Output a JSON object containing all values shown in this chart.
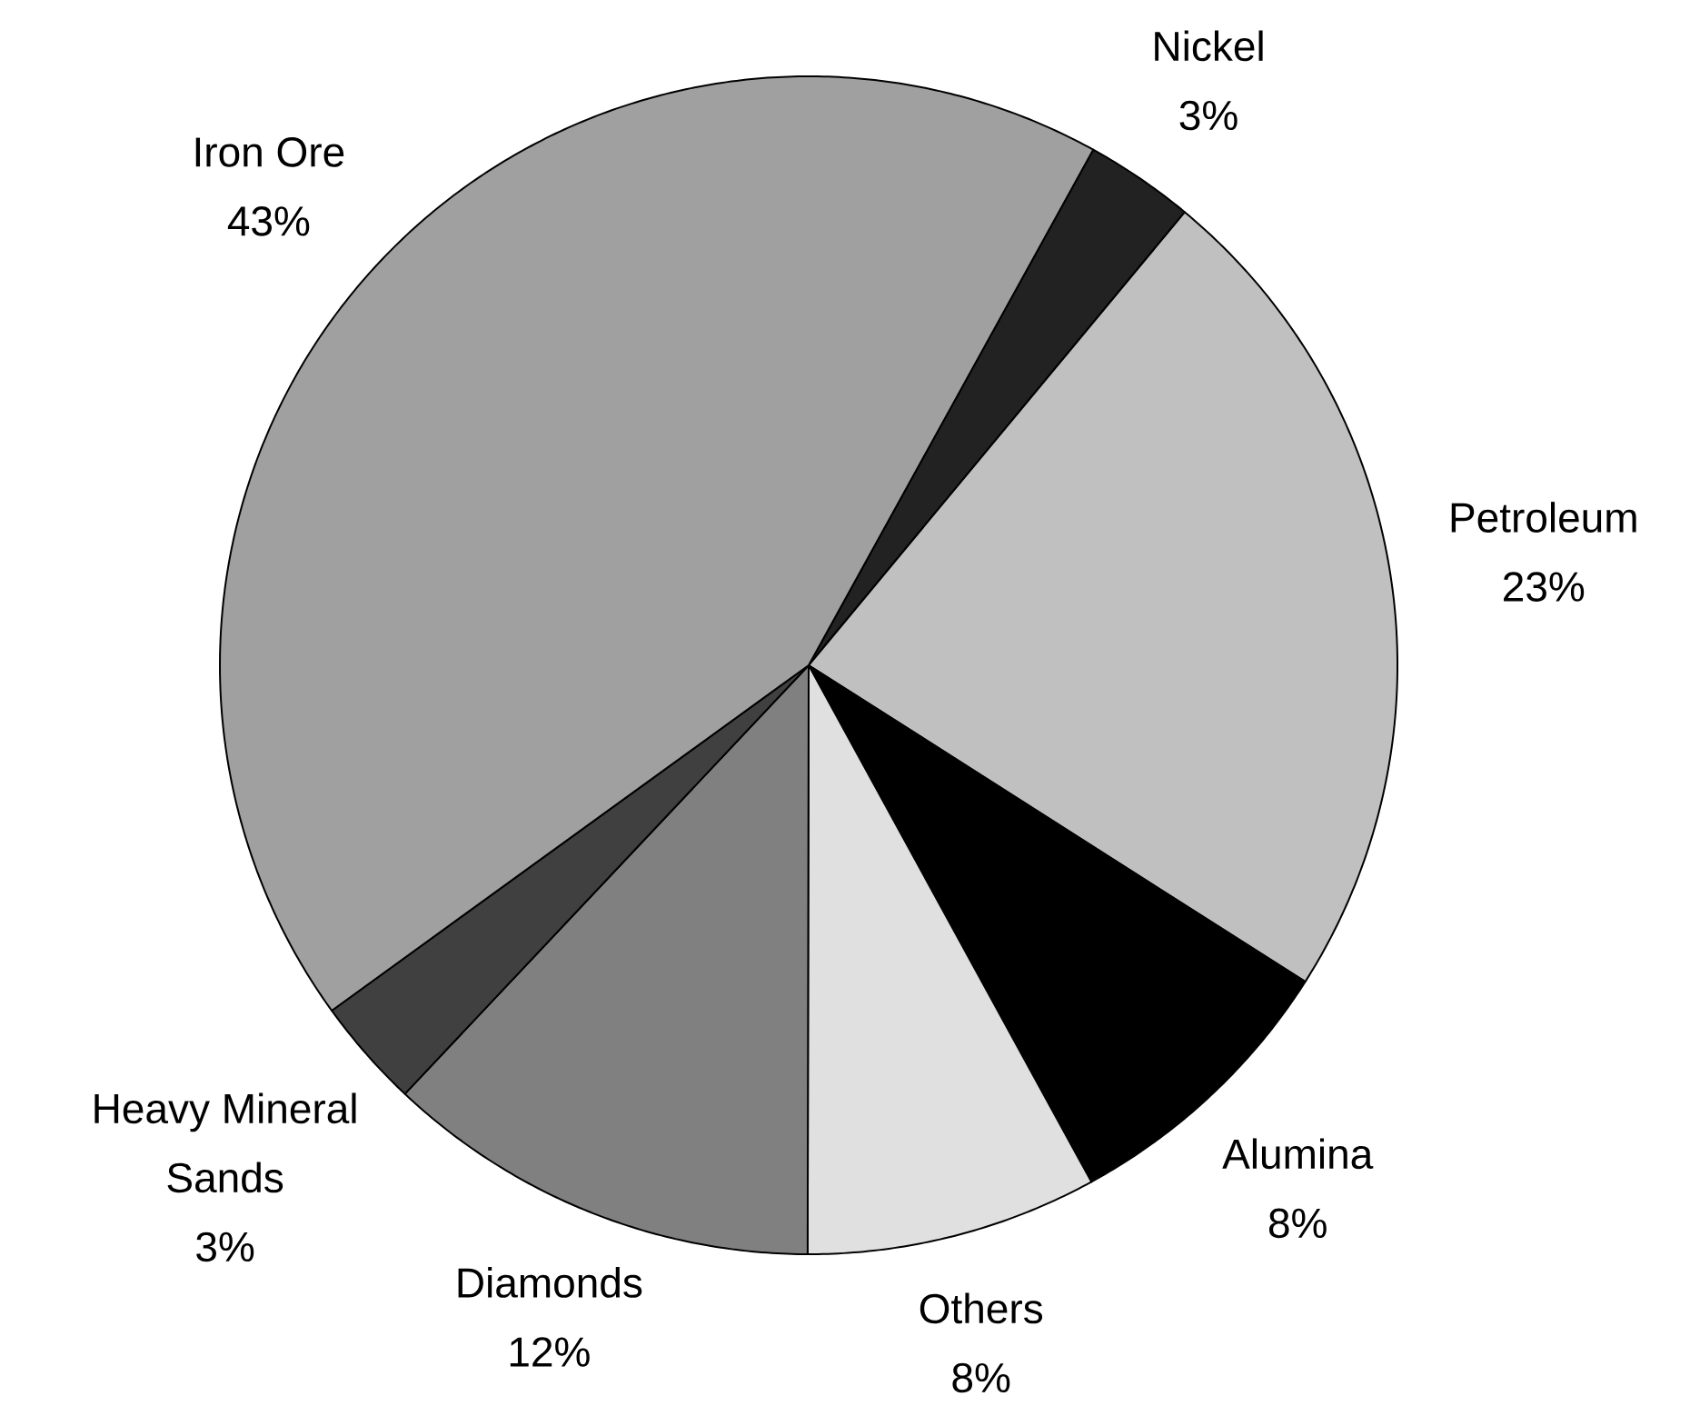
{
  "chart_data": {
    "type": "pie",
    "categories": [
      "Nickel",
      "Petroleum",
      "Alumina",
      "Others",
      "Diamonds",
      "Heavy Mineral Sands",
      "Iron Ore"
    ],
    "values": [
      3,
      23,
      8,
      8,
      12,
      3,
      43
    ],
    "colors": [
      "#222222",
      "#c0c0c0",
      "#000000",
      "#e0e0e0",
      "#808080",
      "#404040",
      "#a0a0a0"
    ],
    "value_labels": [
      "3%",
      "23%",
      "8%",
      "8%",
      "12%",
      "3%",
      "43%"
    ]
  }
}
